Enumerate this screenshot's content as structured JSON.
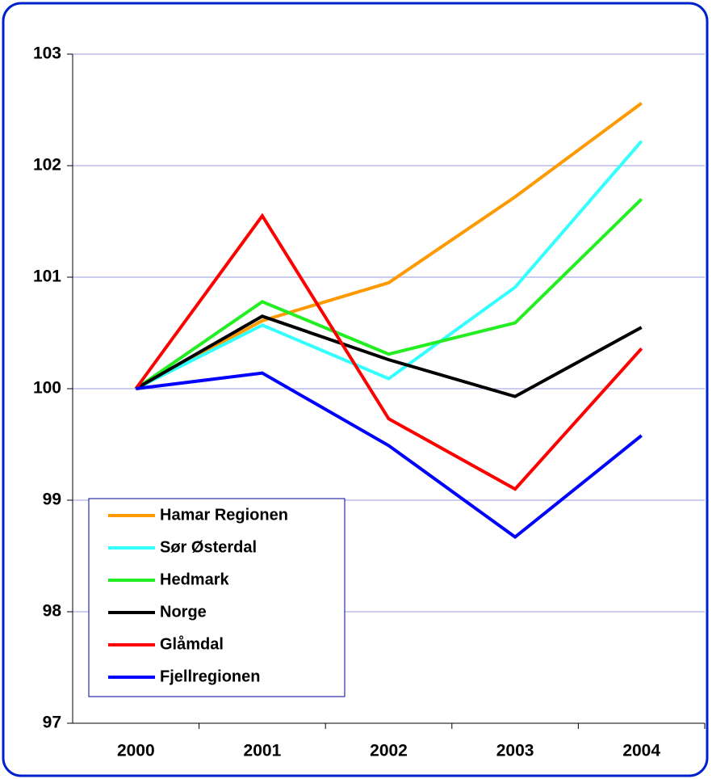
{
  "chart_data": {
    "type": "line",
    "categories": [
      "2000",
      "2001",
      "2002",
      "2003",
      "2004"
    ],
    "series": [
      {
        "name": "Hamar Regionen",
        "color": "#ff9900",
        "values": [
          100,
          100.61,
          100.95,
          101.72,
          102.56
        ]
      },
      {
        "name": "Sør Østerdal",
        "color": "#33ffff",
        "values": [
          100,
          100.57,
          100.09,
          100.91,
          102.22
        ]
      },
      {
        "name": "Hedmark",
        "color": "#22ee22",
        "values": [
          100,
          100.78,
          100.31,
          100.59,
          101.7
        ]
      },
      {
        "name": "Norge",
        "color": "#000000",
        "values": [
          100,
          100.65,
          100.26,
          99.93,
          100.55
        ]
      },
      {
        "name": "Glåmdal",
        "color": "#ff0000",
        "values": [
          100,
          101.55,
          99.73,
          99.1,
          100.36
        ]
      },
      {
        "name": "Fjellregionen",
        "color": "#0000ff",
        "values": [
          100,
          100.14,
          99.49,
          98.67,
          99.58
        ]
      }
    ],
    "ylim": [
      97,
      103
    ],
    "yticks": [
      97,
      98,
      99,
      100,
      101,
      102,
      103
    ],
    "grid": true
  }
}
